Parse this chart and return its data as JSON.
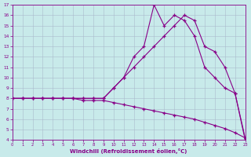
{
  "xlabel": "Windchill (Refroidissement éolien,°C)",
  "xlim": [
    0,
    23
  ],
  "ylim": [
    4,
    17
  ],
  "xticks": [
    0,
    1,
    2,
    3,
    4,
    5,
    6,
    7,
    8,
    9,
    10,
    11,
    12,
    13,
    14,
    15,
    16,
    17,
    18,
    19,
    20,
    21,
    22,
    23
  ],
  "yticks": [
    4,
    5,
    6,
    7,
    8,
    9,
    10,
    11,
    12,
    13,
    14,
    15,
    16,
    17
  ],
  "bg_color": "#c8eaea",
  "line_color": "#880088",
  "grid_color": "#aabbcc",
  "curve_top_x": [
    0,
    1,
    2,
    3,
    4,
    5,
    6,
    7,
    8,
    9,
    10,
    11,
    12,
    13,
    14,
    15,
    16,
    17,
    18,
    19,
    20,
    21,
    22,
    23
  ],
  "curve_top_y": [
    8,
    8,
    8,
    8,
    8,
    8,
    8,
    8,
    8,
    8,
    9,
    10,
    12,
    13,
    17,
    15,
    16,
    15.5,
    14,
    11,
    10,
    9,
    8.5,
    4
  ],
  "curve_mid_x": [
    0,
    1,
    2,
    3,
    4,
    5,
    6,
    7,
    8,
    9,
    10,
    11,
    12,
    13,
    14,
    15,
    16,
    17,
    18,
    19,
    20,
    21,
    22,
    23
  ],
  "curve_mid_y": [
    8,
    8,
    8,
    8,
    8,
    8,
    8,
    8,
    8,
    8,
    9,
    10,
    11,
    12,
    13,
    14,
    15,
    16,
    15.5,
    13,
    12.5,
    11,
    8.5,
    4.2
  ],
  "curve_bot_x": [
    0,
    1,
    2,
    3,
    4,
    5,
    6,
    7,
    8,
    9,
    10,
    11,
    12,
    13,
    14,
    15,
    16,
    17,
    18,
    19,
    20,
    21,
    22,
    23
  ],
  "curve_bot_y": [
    8,
    8,
    8,
    8,
    8,
    8,
    8,
    7.8,
    7.8,
    7.8,
    7.6,
    7.4,
    7.2,
    7.0,
    6.8,
    6.6,
    6.4,
    6.2,
    6.0,
    5.7,
    5.4,
    5.1,
    4.7,
    4.2
  ]
}
